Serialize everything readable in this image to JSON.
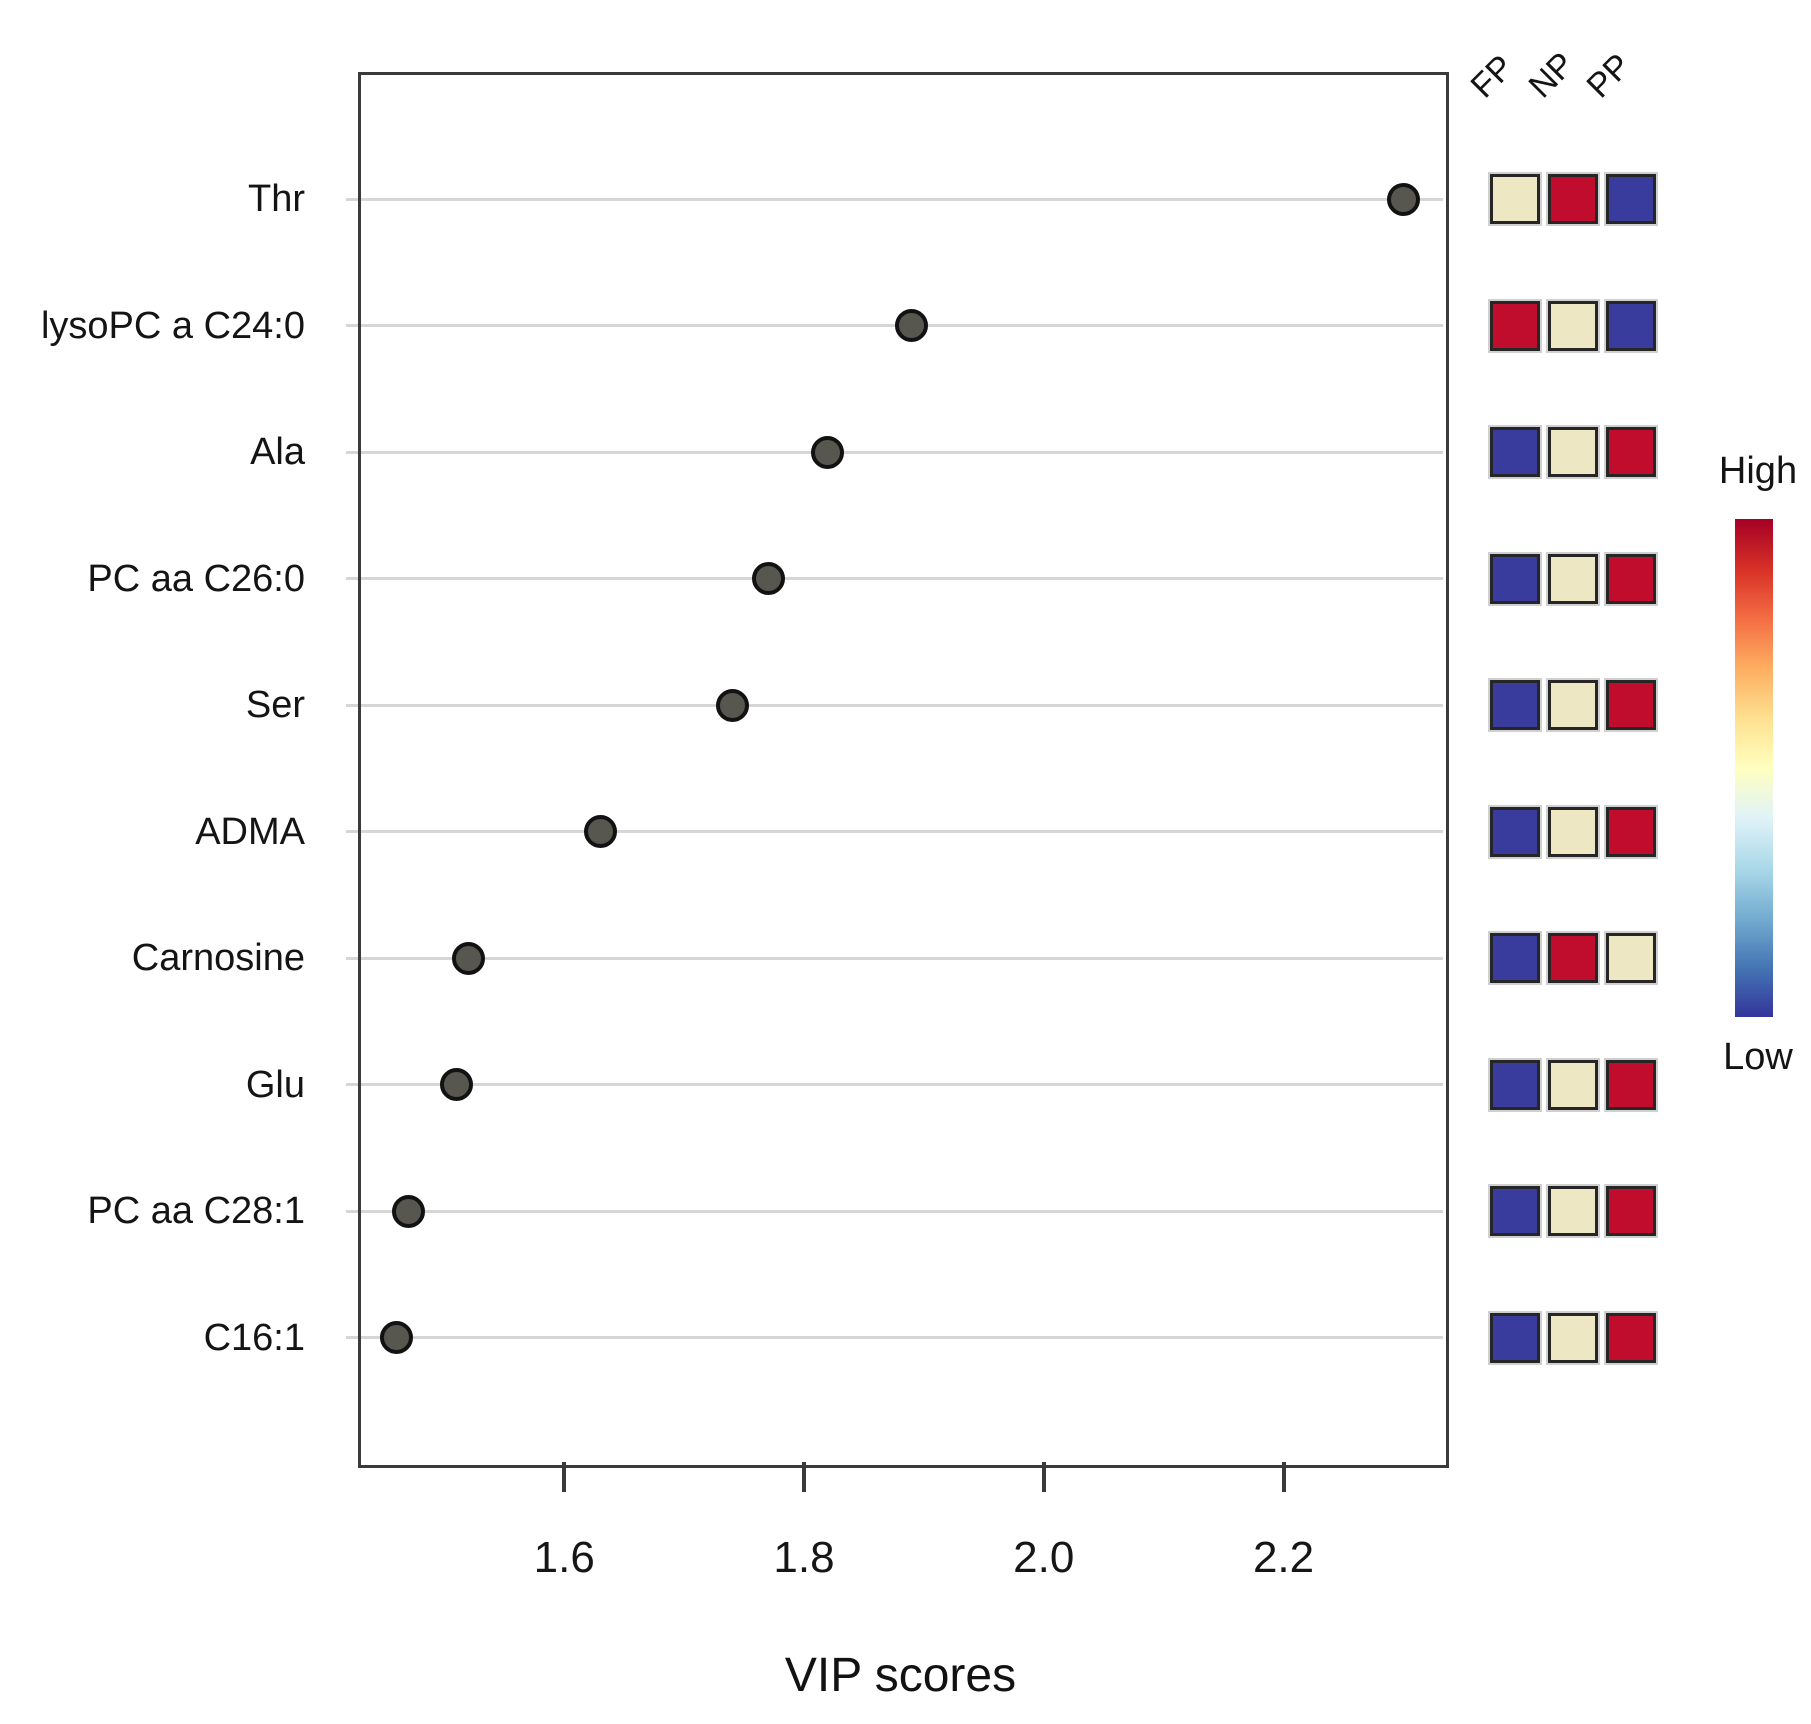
{
  "chart_data": {
    "type": "scatter",
    "title": "",
    "xlabel": "VIP scores",
    "xlim": [
      1.428,
      2.333
    ],
    "xticks": [
      {
        "label": "1.6",
        "value": 1.6
      },
      {
        "label": "1.8",
        "value": 1.8
      },
      {
        "label": "2.0",
        "value": 2.0
      },
      {
        "label": "2.2",
        "value": 2.2
      }
    ],
    "grid": "horizontal-gridlines",
    "legend_position": "right",
    "features": [
      {
        "label": "Thr",
        "vip": 2.3,
        "groups": {
          "FP": "mid",
          "NP": "high",
          "PP": "low"
        }
      },
      {
        "label": "lysoPC a C24:0",
        "vip": 1.89,
        "groups": {
          "FP": "high",
          "NP": "mid",
          "PP": "low"
        }
      },
      {
        "label": "Ala",
        "vip": 1.82,
        "groups": {
          "FP": "low",
          "NP": "mid",
          "PP": "high"
        }
      },
      {
        "label": "PC aa C26:0",
        "vip": 1.77,
        "groups": {
          "FP": "low",
          "NP": "mid",
          "PP": "high"
        }
      },
      {
        "label": "Ser",
        "vip": 1.74,
        "groups": {
          "FP": "low",
          "NP": "mid",
          "PP": "high"
        }
      },
      {
        "label": "ADMA",
        "vip": 1.63,
        "groups": {
          "FP": "low",
          "NP": "mid",
          "PP": "high"
        }
      },
      {
        "label": "Carnosine",
        "vip": 1.52,
        "groups": {
          "FP": "low",
          "NP": "high",
          "PP": "mid"
        }
      },
      {
        "label": "Glu",
        "vip": 1.51,
        "groups": {
          "FP": "low",
          "NP": "mid",
          "PP": "high"
        }
      },
      {
        "label": "PC aa C28:1",
        "vip": 1.47,
        "groups": {
          "FP": "low",
          "NP": "mid",
          "PP": "high"
        }
      },
      {
        "label": "C16:1",
        "vip": 1.46,
        "groups": {
          "FP": "low",
          "NP": "mid",
          "PP": "high"
        }
      }
    ],
    "heatmap": {
      "columns": [
        "FP",
        "NP",
        "PP"
      ],
      "cell_colors": {
        "high": "#c00c2d",
        "mid": "#ede7c3",
        "low": "#3a3c9d"
      }
    },
    "colorbar": {
      "high_label": "High",
      "low_label": "Low",
      "gradient_top_to_bottom": [
        "#a50026",
        "#d73027",
        "#f46d43",
        "#fdae61",
        "#fee090",
        "#ffffbf",
        "#e0f3f8",
        "#abd9e9",
        "#74add1",
        "#4575b4",
        "#33369b"
      ]
    },
    "dot_color": "#57564f",
    "dot_border_color": "#121212"
  }
}
